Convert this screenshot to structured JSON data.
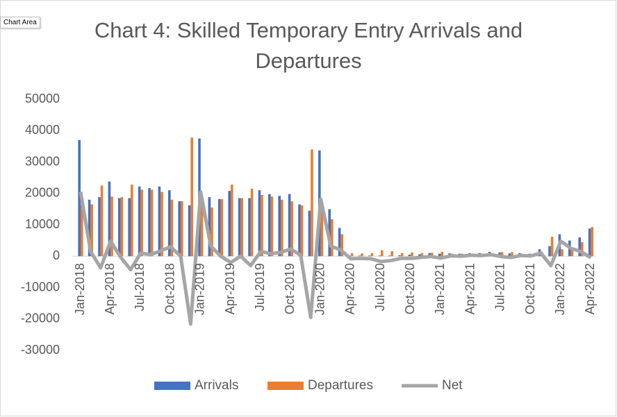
{
  "tooltip": "Chart Area",
  "chart_data": {
    "type": "bar",
    "title": "Chart 4: Skilled Temporary Entry Arrivals and Departures",
    "categories": [
      "Jan-2018",
      null,
      null,
      "Apr-2018",
      null,
      null,
      "Jul-2018",
      null,
      null,
      "Oct-2018",
      null,
      null,
      "Jan-2019",
      null,
      null,
      "Apr-2019",
      null,
      null,
      "Jul-2019",
      null,
      null,
      "Oct-2019",
      null,
      null,
      "Jan-2020",
      null,
      null,
      "Apr-2020",
      null,
      null,
      "Jul-2020",
      null,
      null,
      "Oct-2020",
      null,
      null,
      "Jan-2021",
      null,
      null,
      "Apr-2021",
      null,
      null,
      "Jul-2021",
      null,
      null,
      "Oct-2021",
      null,
      null,
      "Jan-2022",
      null,
      null,
      "Apr-2022"
    ],
    "series": [
      {
        "name": "Arrivals",
        "color": "#4472c4",
        "values": [
          37000,
          18000,
          18800,
          23800,
          18500,
          18500,
          22200,
          21700,
          22200,
          21000,
          17500,
          16200,
          37500,
          18800,
          18200,
          20800,
          18500,
          18500,
          21000,
          19800,
          19200,
          19800,
          16500,
          14500,
          33700,
          15000,
          9000,
          200,
          200,
          200,
          200,
          200,
          300,
          500,
          600,
          1000,
          800,
          900,
          800,
          1000,
          1000,
          1400,
          1200,
          900,
          1000,
          800,
          2200,
          3200,
          7000,
          5000,
          6000,
          8800
        ]
      },
      {
        "name": "Departures",
        "color": "#ed7d31",
        "values": [
          16500,
          16500,
          22500,
          19000,
          18800,
          22800,
          21200,
          21200,
          20500,
          18000,
          17500,
          37800,
          17000,
          15500,
          18200,
          22800,
          18500,
          21500,
          19500,
          19000,
          18000,
          17500,
          16200,
          34000,
          15500,
          11800,
          7000,
          1000,
          900,
          1000,
          1900,
          1600,
          1000,
          1200,
          1000,
          1100,
          1400,
          800,
          800,
          700,
          800,
          900,
          1300,
          1300,
          800,
          700,
          1200,
          6200,
          2200,
          2500,
          4500,
          9300
        ]
      },
      {
        "name": "Net",
        "color": "#a5a5a5",
        "type": "line",
        "values": [
          20500,
          1500,
          -3700,
          4800,
          -300,
          -4300,
          1000,
          500,
          1700,
          3000,
          0,
          -21600,
          20500,
          3300,
          0,
          -2000,
          0,
          -3000,
          1500,
          800,
          1200,
          2300,
          300,
          -19500,
          18200,
          3200,
          2000,
          -800,
          -700,
          -800,
          -1700,
          -1400,
          -700,
          -700,
          -400,
          -100,
          -600,
          100,
          0,
          300,
          200,
          500,
          -100,
          -400,
          200,
          100,
          1000,
          -3000,
          4800,
          2500,
          1500,
          -500
        ]
      }
    ],
    "ylim": [
      -30000,
      50000
    ],
    "yticks": [
      -30000,
      -20000,
      -10000,
      0,
      10000,
      20000,
      30000,
      40000,
      50000
    ],
    "grid": false,
    "legend": "bottom"
  }
}
